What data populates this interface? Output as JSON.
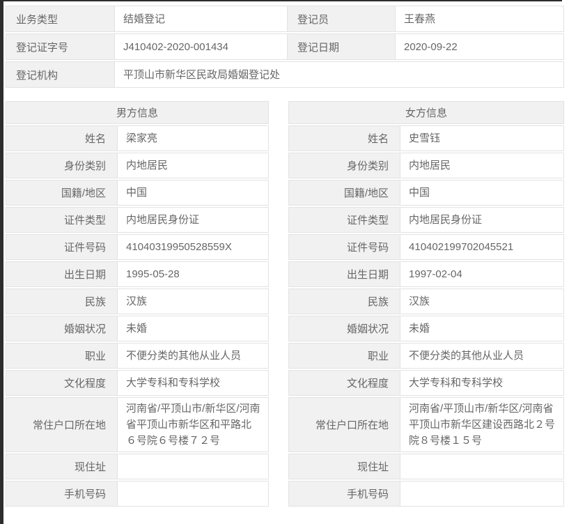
{
  "colors": {
    "label_bg": "#f1f1f1",
    "cell_bg": "#ffffff",
    "border": "#e2e2e2",
    "text": "#666666",
    "edge_bar": "#2d2d2d"
  },
  "top_table": {
    "row1": {
      "label1": "业务类型",
      "value1": "结婚登记",
      "label2": "登记员",
      "value2": "王春燕"
    },
    "row2": {
      "label1": "登记证字号",
      "value1": "J410402-2020-001434",
      "label2": "登记日期",
      "value2": "2020-09-22"
    },
    "row3": {
      "label1": "登记机构",
      "value1": "平顶山市新华区民政局婚姻登记处"
    }
  },
  "male": {
    "title": "男方信息",
    "fields": [
      {
        "label": "姓名",
        "value": "梁家亮"
      },
      {
        "label": "身份类别",
        "value": "内地居民"
      },
      {
        "label": "国籍/地区",
        "value": "中国"
      },
      {
        "label": "证件类型",
        "value": "内地居民身份证"
      },
      {
        "label": "证件号码",
        "value": "41040319950528559X"
      },
      {
        "label": "出生日期",
        "value": "1995-05-28"
      },
      {
        "label": "民族",
        "value": "汉族"
      },
      {
        "label": "婚姻状况",
        "value": "未婚"
      },
      {
        "label": "职业",
        "value": "不便分类的其他从业人员"
      },
      {
        "label": "文化程度",
        "value": "大学专科和专科学校"
      },
      {
        "label": "常住户口所在地",
        "value": "河南省/平顶山市/新华区/河南省平顶山市新华区和平路北６号院６号楼７２号"
      },
      {
        "label": "现住址",
        "value": ""
      },
      {
        "label": "手机号码",
        "value": ""
      }
    ]
  },
  "female": {
    "title": "女方信息",
    "fields": [
      {
        "label": "姓名",
        "value": "史雪钰"
      },
      {
        "label": "身份类别",
        "value": "内地居民"
      },
      {
        "label": "国籍/地区",
        "value": "中国"
      },
      {
        "label": "证件类型",
        "value": "内地居民身份证"
      },
      {
        "label": "证件号码",
        "value": "410402199702045521"
      },
      {
        "label": "出生日期",
        "value": "1997-02-04"
      },
      {
        "label": "民族",
        "value": "汉族"
      },
      {
        "label": "婚姻状况",
        "value": "未婚"
      },
      {
        "label": "职业",
        "value": "不便分类的其他从业人员"
      },
      {
        "label": "文化程度",
        "value": "大学专科和专科学校"
      },
      {
        "label": "常住户口所在地",
        "value": "河南省/平顶山市/新华区/河南省平顶山市新华区建设西路北２号院８号楼１５号"
      },
      {
        "label": "现住址",
        "value": ""
      },
      {
        "label": "手机号码",
        "value": ""
      }
    ]
  }
}
